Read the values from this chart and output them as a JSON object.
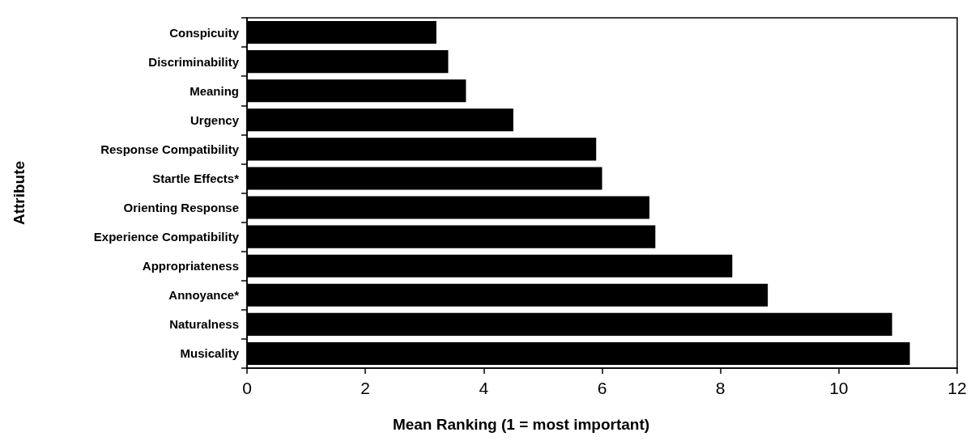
{
  "chart_data": {
    "type": "bar",
    "orientation": "horizontal",
    "xlabel": "Mean Ranking (1 = most important)",
    "ylabel": "Attribute",
    "categories": [
      "Conspicuity",
      "Discriminability",
      "Meaning",
      "Urgency",
      "Response Compatibility",
      "Startle Effects*",
      "Orienting Response",
      "Experience Compatibility",
      "Appropriateness",
      "Annoyance*",
      "Naturalness",
      "Musicality"
    ],
    "values": [
      3.2,
      3.4,
      3.7,
      4.5,
      5.9,
      6.0,
      6.8,
      6.9,
      8.2,
      8.8,
      10.9,
      11.2
    ],
    "color": "#000000",
    "xlim": [
      0,
      12
    ],
    "xticks": [
      0,
      2,
      4,
      6,
      8,
      10,
      12
    ]
  }
}
